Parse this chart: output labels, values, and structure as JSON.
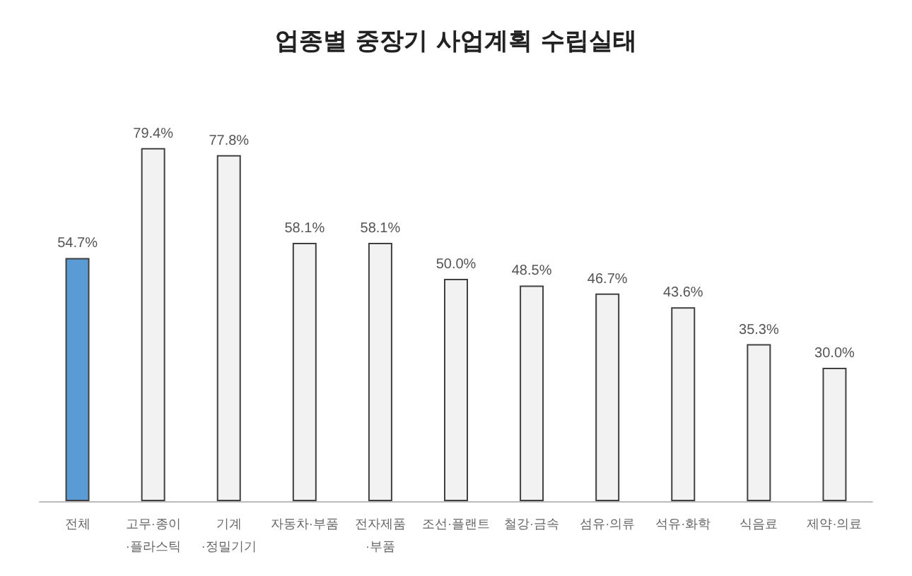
{
  "chart_data": {
    "type": "bar",
    "title": "업종별 중장기 사업계획 수립실태",
    "categories": [
      "전체",
      "고무·종이·플라스틱",
      "기계·정밀기기",
      "자동차·부품",
      "전자제품·부품",
      "조선·플랜트",
      "철강·금속",
      "섬유·의류",
      "석유·화학",
      "식음료",
      "제약·의료"
    ],
    "values": [
      54.7,
      79.4,
      77.8,
      58.1,
      58.1,
      50.0,
      48.5,
      46.7,
      43.6,
      35.3,
      30.0
    ],
    "value_labels": [
      "54.7%",
      "79.4%",
      "77.8%",
      "58.1%",
      "58.1%",
      "50.0%",
      "48.5%",
      "46.7%",
      "43.6%",
      "35.3%",
      "30.0%"
    ],
    "colors": [
      "#5b9bd5",
      "#f2f2f2",
      "#f2f2f2",
      "#f2f2f2",
      "#f2f2f2",
      "#f2f2f2",
      "#f2f2f2",
      "#f2f2f2",
      "#f2f2f2",
      "#f2f2f2",
      "#f2f2f2"
    ]
  }
}
